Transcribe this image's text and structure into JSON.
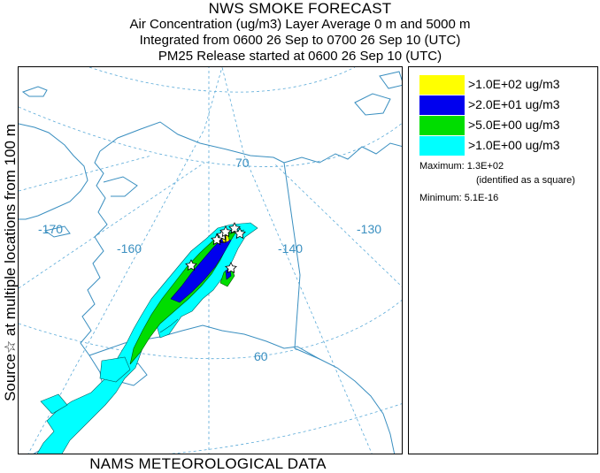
{
  "title": {
    "line1": "NWS SMOKE FORECAST",
    "line2": "Air Concentration (ug/m3) Layer Average    0 m and  5000 m",
    "line3": "Integrated from 0600 26 Sep to 0700 26 Sep 10 (UTC)",
    "line4": "PM25 Release started at 0600 26 Sep 10 (UTC)"
  },
  "side_label": "Source☆ at multiple locations from  100 m",
  "bottom_label": "NAMS METEOROLOGICAL DATA",
  "map": {
    "longitude_labels": [
      "-170",
      "-160",
      "-140",
      "-130"
    ],
    "latitude_labels": [
      "70",
      "60"
    ],
    "colors": {
      "coast": "#3a8fc0",
      "grid": "#5aaad8",
      "label": "#3a8fc0"
    }
  },
  "legend": {
    "items": [
      {
        "label": ">1.0E+02 ug/m3",
        "color": "#ffff00"
      },
      {
        "label": ">2.0E+01 ug/m3",
        "color": "#0000ee"
      },
      {
        "label": ">5.0E+00 ug/m3",
        "color": "#00dd00"
      },
      {
        "label": ">1.0E+00 ug/m3",
        "color": "#00ffff"
      }
    ],
    "maximum": "Maximum: 1.3E+02",
    "maximum_note": "(identified as a square)",
    "minimum": "Minimum: 5.1E-16"
  }
}
